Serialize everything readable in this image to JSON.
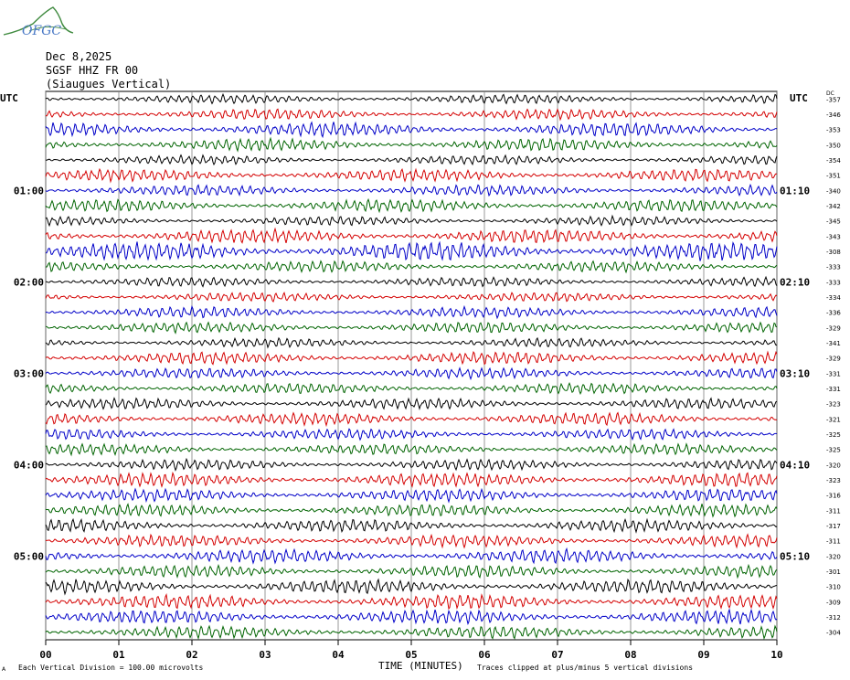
{
  "logo": {
    "text": "OFGC",
    "accent": "#3f8a3f",
    "text_color": "#4a79c6"
  },
  "header": {
    "date": "Dec 8,2025",
    "station": "SGSF HHZ FR 00",
    "location": "(Siaugues Vertical)"
  },
  "left_label": "UTC",
  "right_label": "UTC",
  "dc_label": "DC",
  "chart_data": {
    "type": "line",
    "subtype": "helicorder",
    "xlabel": "TIME (MINUTES)",
    "x_ticks": [
      "00",
      "01",
      "02",
      "03",
      "04",
      "05",
      "06",
      "07",
      "08",
      "09",
      "10"
    ],
    "xlim": [
      0,
      10
    ],
    "grid": true,
    "left_time_labels": [
      {
        "row": 6,
        "text": "01:00"
      },
      {
        "row": 12,
        "text": "02:00"
      },
      {
        "row": 18,
        "text": "03:00"
      },
      {
        "row": 24,
        "text": "04:00"
      },
      {
        "row": 30,
        "text": "05:00"
      }
    ],
    "right_time_labels": [
      {
        "row": 6,
        "text": "01:10"
      },
      {
        "row": 12,
        "text": "02:10"
      },
      {
        "row": 18,
        "text": "03:10"
      },
      {
        "row": 24,
        "text": "04:10"
      },
      {
        "row": 30,
        "text": "05:10"
      }
    ],
    "trace_colors": [
      "#000000",
      "#d40000",
      "#0000c8",
      "#006400"
    ],
    "dc_offsets": [
      -357,
      -346,
      -353,
      -350,
      -354,
      -351,
      -340,
      -342,
      -345,
      -343,
      -308,
      -333,
      -333,
      -334,
      -336,
      -329,
      -341,
      -329,
      -331,
      -331,
      -323,
      -321,
      -325,
      -325,
      -320,
      -323,
      -316,
      -311,
      -317,
      -311,
      -320,
      -301,
      -310,
      -309,
      -312,
      -304
    ],
    "trace_amplitudes": [
      0.3,
      0.35,
      0.45,
      0.4,
      0.3,
      0.4,
      0.35,
      0.4,
      0.3,
      0.45,
      0.6,
      0.35,
      0.3,
      0.3,
      0.35,
      0.35,
      0.3,
      0.4,
      0.35,
      0.35,
      0.35,
      0.4,
      0.35,
      0.35,
      0.35,
      0.45,
      0.4,
      0.4,
      0.4,
      0.4,
      0.45,
      0.4,
      0.45,
      0.45,
      0.45,
      0.4
    ]
  },
  "footer": {
    "scale_note": "Each Vertical Division =  100.00 microvolts",
    "clip_note": "Traces clipped at plus/minus 5 vertical divisions",
    "corner_mark": "A"
  }
}
